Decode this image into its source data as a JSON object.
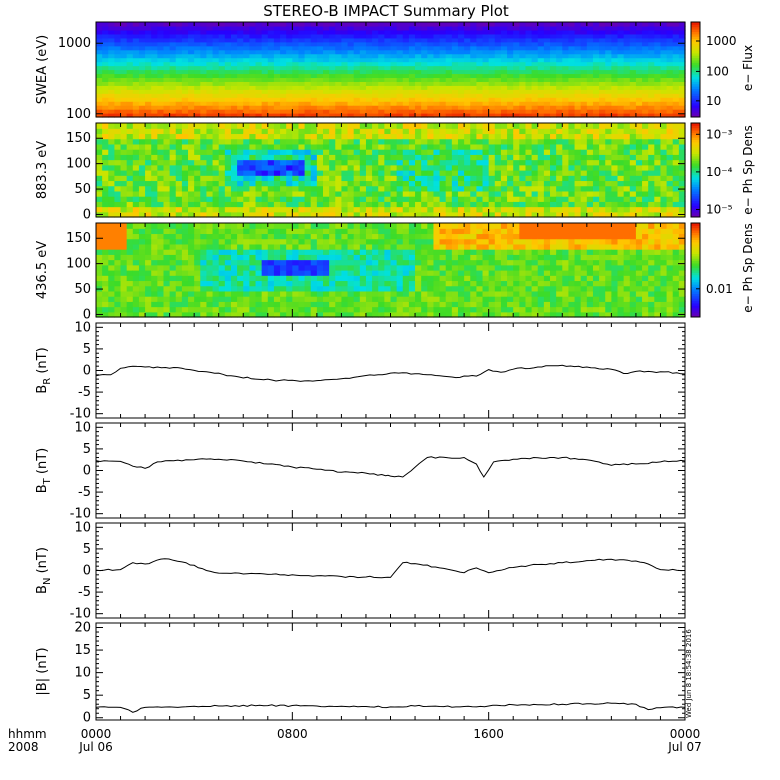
{
  "title": "STEREO-B IMPACT Summary Plot",
  "footer": {
    "hhmm_label": "hhmm",
    "year_label": "2008",
    "timestamp": "Wed Jun 8 18:54:38 2016"
  },
  "time_axis": {
    "ticks": [
      {
        "hour": 0,
        "top": "0000",
        "bottom": "Jul 06"
      },
      {
        "hour": 8,
        "top": "0800",
        "bottom": ""
      },
      {
        "hour": 16,
        "top": "1600",
        "bottom": ""
      },
      {
        "hour": 24,
        "top": "0000",
        "bottom": "Jul 07"
      }
    ],
    "range": [
      0,
      24
    ],
    "minor_step_hours": 1
  },
  "spectrograms": [
    {
      "ylabel": "SWEA (eV)",
      "scale": "log",
      "yrange": [
        90,
        2000
      ],
      "yticks": [
        {
          "v": 100,
          "label": "100"
        },
        {
          "v": 1000,
          "label": "1000"
        }
      ],
      "colorbar_label": "e− Flux",
      "colorbar_ticks": [
        {
          "f": 0.17,
          "label": "10"
        },
        {
          "f": 0.48,
          "label": "100"
        },
        {
          "f": 0.8,
          "label": "1000"
        }
      ]
    },
    {
      "ylabel": "883.3 eV",
      "scale": "linear",
      "yrange": [
        -5,
        180
      ],
      "yticks": [
        {
          "v": 0,
          "label": "0"
        },
        {
          "v": 50,
          "label": "50"
        },
        {
          "v": 100,
          "label": "100"
        },
        {
          "v": 150,
          "label": "150"
        }
      ],
      "colorbar_label": "e− Ph Sp Dens",
      "colorbar_ticks": [
        {
          "f": 0.08,
          "label": "10⁻⁵"
        },
        {
          "f": 0.48,
          "label": "10⁻⁴"
        },
        {
          "f": 0.88,
          "label": "10⁻³"
        }
      ]
    },
    {
      "ylabel": "436.5 eV",
      "scale": "linear",
      "yrange": [
        -5,
        180
      ],
      "yticks": [
        {
          "v": 0,
          "label": "0"
        },
        {
          "v": 50,
          "label": "50"
        },
        {
          "v": 100,
          "label": "100"
        },
        {
          "v": 150,
          "label": "150"
        }
      ],
      "colorbar_label": "e− Ph Sp Dens",
      "colorbar_ticks": [
        {
          "f": 0.3,
          "label": "0.01"
        }
      ]
    }
  ],
  "chart_data": [
    {
      "type": "line",
      "ylabel_main": "B",
      "ylabel_sub": "R",
      "ylabel_unit": " (nT)",
      "ylim": [
        -11,
        11
      ],
      "yticks": [
        -10,
        -5,
        0,
        5,
        10
      ],
      "x": [
        0,
        0.6,
        1.0,
        1.5,
        2.0,
        2.5,
        3.5,
        4.5,
        5.5,
        6.5,
        7.5,
        8.5,
        9.5,
        10.5,
        11.5,
        12.0,
        12.5,
        13.5,
        14.5,
        15.5,
        16.0,
        16.5,
        17.0,
        18.0,
        19.0,
        19.5,
        20.0,
        21.0,
        21.5,
        22.0,
        23.0,
        24.0
      ],
      "values": [
        -1.2,
        -1.0,
        0.5,
        1.0,
        0.8,
        0.8,
        0.5,
        -0.3,
        -1.2,
        -2.0,
        -2.3,
        -2.4,
        -2.1,
        -1.6,
        -1.0,
        -0.6,
        -0.5,
        -1.0,
        -1.5,
        -1.3,
        0.2,
        -0.4,
        0.3,
        0.8,
        1.2,
        0.9,
        0.8,
        0.3,
        -0.7,
        -0.2,
        -0.3,
        -0.8
      ]
    },
    {
      "type": "line",
      "ylabel_main": "B",
      "ylabel_sub": "T",
      "ylabel_unit": " (nT)",
      "ylim": [
        -11,
        11
      ],
      "yticks": [
        -10,
        -5,
        0,
        5,
        10
      ],
      "x": [
        0,
        1.0,
        1.5,
        2.0,
        2.5,
        3.0,
        4.0,
        5.0,
        6.0,
        7.0,
        8.0,
        9.0,
        10.0,
        11.0,
        11.8,
        12.0,
        12.5,
        13.5,
        15.0,
        15.5,
        15.8,
        16.2,
        16.5,
        17.5,
        19.0,
        20.0,
        21.0,
        22.0,
        23.0,
        24.0
      ],
      "values": [
        2.3,
        2.1,
        1.0,
        0.5,
        2.0,
        2.3,
        2.5,
        2.6,
        2.2,
        1.5,
        0.8,
        0.3,
        -0.4,
        -0.6,
        -1.2,
        -1.3,
        -1.5,
        3.0,
        3.0,
        1.5,
        -1.5,
        2.0,
        2.3,
        2.8,
        3.0,
        2.5,
        1.2,
        1.5,
        2.0,
        2.2
      ]
    },
    {
      "type": "line",
      "ylabel_main": "B",
      "ylabel_sub": "N",
      "ylabel_unit": " (nT)",
      "ylim": [
        -11,
        11
      ],
      "yticks": [
        -10,
        -5,
        0,
        5,
        10
      ],
      "x": [
        0,
        1.0,
        1.5,
        2.0,
        2.8,
        3.5,
        4.0,
        4.5,
        5.0,
        6.0,
        7.0,
        8.0,
        9.0,
        10.0,
        11.0,
        11.8,
        12.0,
        12.5,
        13.0,
        14.0,
        15.0,
        15.5,
        16.0,
        17.0,
        18.0,
        19.0,
        20.0,
        21.0,
        22.0,
        22.5,
        23.0,
        24.0
      ],
      "values": [
        0.1,
        0.2,
        1.8,
        1.5,
        2.7,
        2.0,
        1.2,
        0.0,
        -0.6,
        -0.8,
        -0.9,
        -1.0,
        -1.2,
        -1.4,
        -1.5,
        -1.6,
        -1.6,
        1.8,
        1.6,
        0.6,
        -0.5,
        0.6,
        -0.5,
        0.7,
        1.4,
        1.8,
        2.3,
        2.6,
        2.2,
        1.5,
        0.2,
        0.0
      ]
    },
    {
      "type": "line",
      "ylabel_main": "|B|",
      "ylabel_sub": "",
      "ylabel_unit": " (nT)",
      "ylim": [
        -0.5,
        21
      ],
      "yticks": [
        0,
        5,
        10,
        15,
        20
      ],
      "x": [
        0,
        1.0,
        1.5,
        2.0,
        3.0,
        5.0,
        7.0,
        9.0,
        11.0,
        12.0,
        13.0,
        14.0,
        15.0,
        16.0,
        17.0,
        18.0,
        19.0,
        20.0,
        21.0,
        22.0,
        22.5,
        23.0,
        24.0
      ],
      "values": [
        2.3,
        2.3,
        1.2,
        2.3,
        2.4,
        2.6,
        2.7,
        2.6,
        2.5,
        2.4,
        2.6,
        2.5,
        2.5,
        2.6,
        2.9,
        2.9,
        3.0,
        3.1,
        3.2,
        3.0,
        1.8,
        2.2,
        2.3
      ]
    }
  ]
}
